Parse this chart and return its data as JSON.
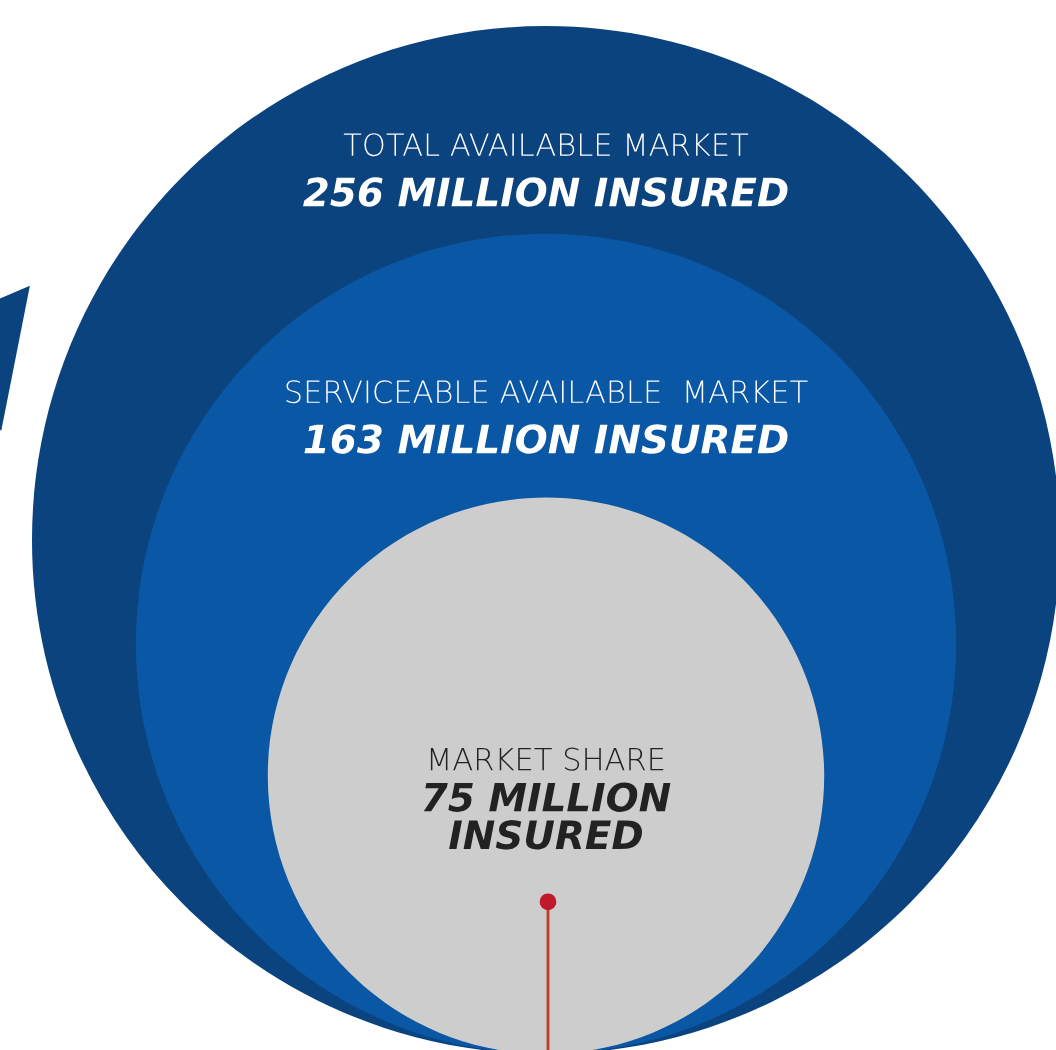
{
  "chart_data": {
    "type": "other",
    "categories": [
      "TOTAL AVAILABLE MARKET",
      "SERVICEABLE AVAILABLE  MARKET",
      "MARKET SHARE"
    ],
    "values": [
      256,
      163,
      75
    ],
    "value_labels": [
      "256 MILLION INSURED",
      "163 MILLION INSURED",
      "75 MILLION INSURED"
    ],
    "colors": [
      "#0b437f",
      "#0a57a6",
      "#cdcdcd"
    ]
  }
}
